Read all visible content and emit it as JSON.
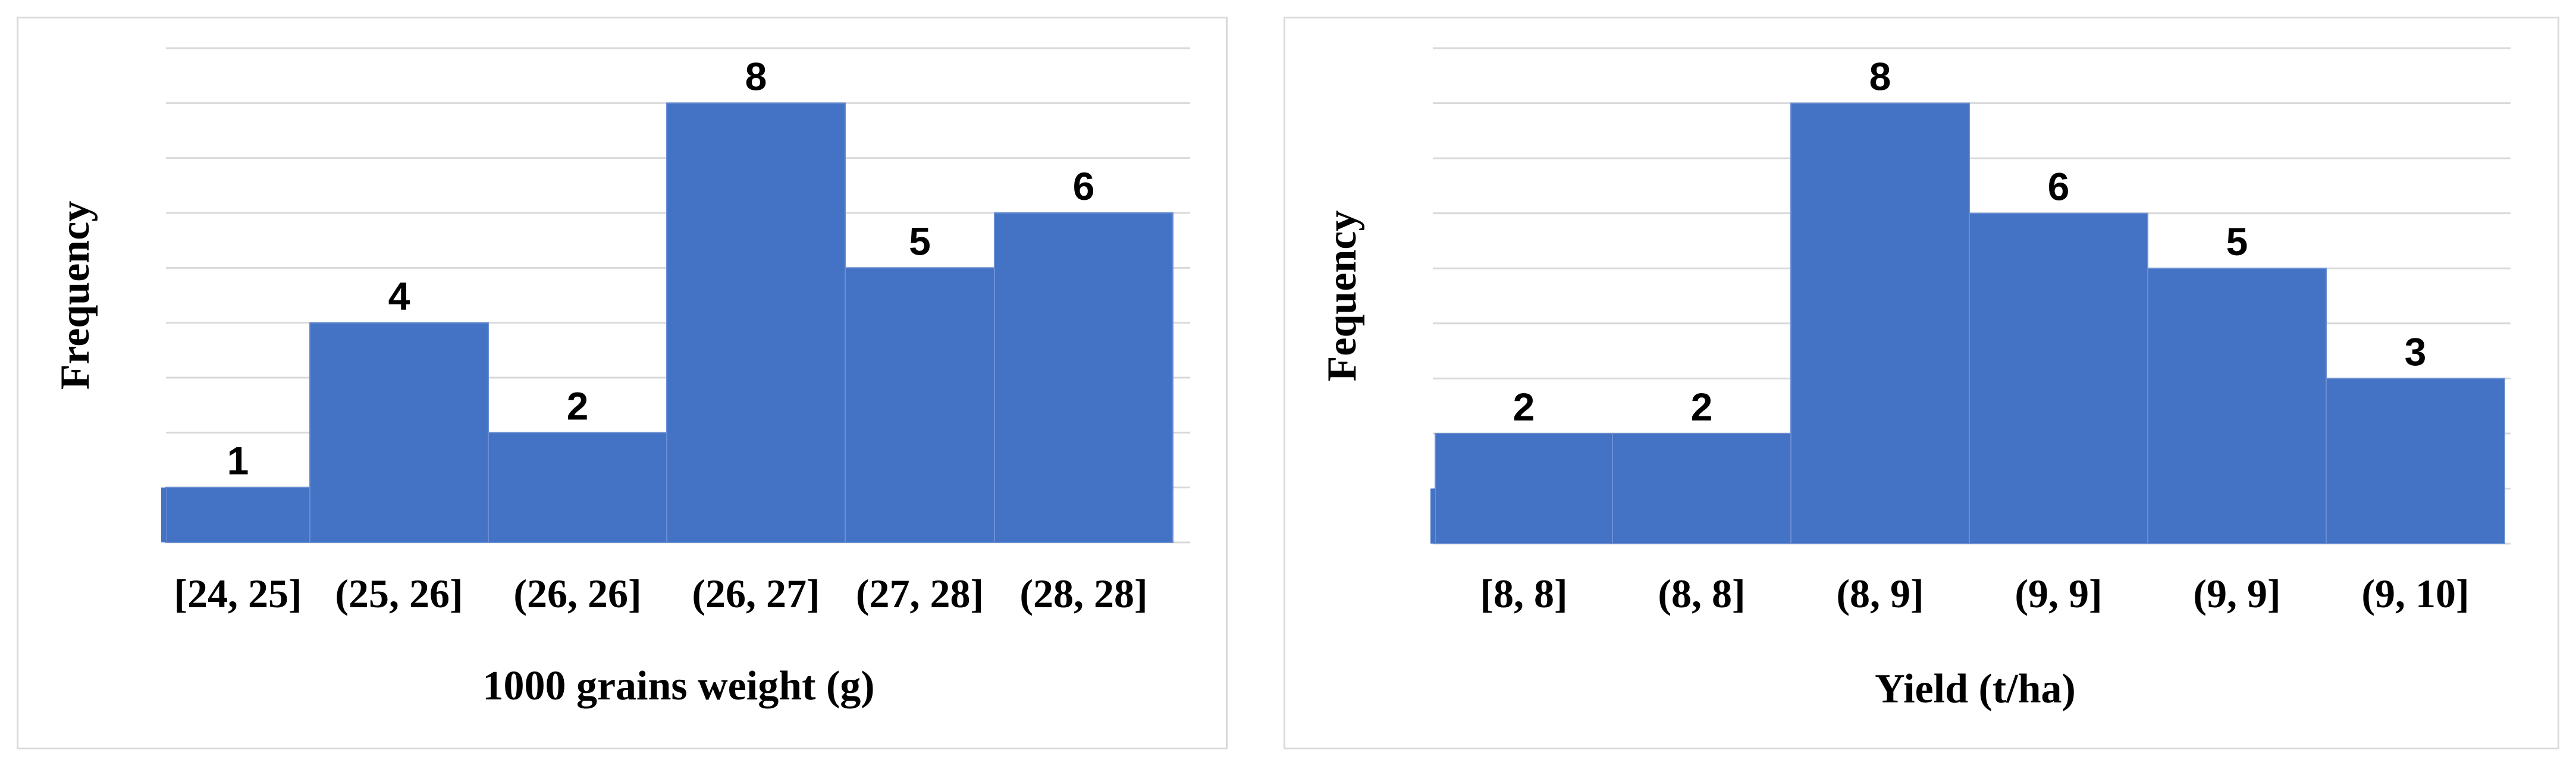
{
  "colors": {
    "bar": "#4472c4",
    "bar_edge": "#6b8fd4",
    "grid": "#d9d9d9",
    "border": "#d9d9d9"
  },
  "chart_data": [
    {
      "type": "bar",
      "title": "",
      "xlabel": "1000 grains weight (g)",
      "ylabel": "Frequency",
      "categories": [
        "[24, 25]",
        "(25, 26]",
        "(26, 26]",
        "(26, 27]",
        "(27, 28]",
        "(28, 28]"
      ],
      "values": [
        1,
        4,
        2,
        8,
        5,
        6
      ],
      "ylim": [
        0,
        9
      ],
      "grid": true,
      "data_labels": true
    },
    {
      "type": "bar",
      "title": "",
      "xlabel": "Yield (t/ha)",
      "ylabel": "Fequency",
      "categories": [
        "[8, 8]",
        "(8, 8]",
        "(8, 9]",
        "(9, 9]",
        "(9, 9]",
        "(9, 10]"
      ],
      "values": [
        2,
        2,
        8,
        6,
        5,
        3
      ],
      "ylim": [
        0,
        9
      ],
      "grid": true,
      "data_labels": true
    }
  ]
}
